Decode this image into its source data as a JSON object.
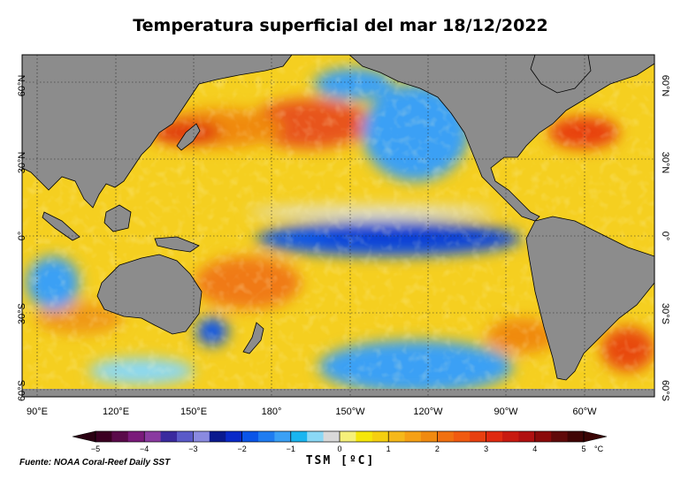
{
  "title": "Temperatura superficial del mar 18/12/2022",
  "source": "Fuente: NOAA Coral-Reef Daily SST",
  "lat_labels": [
    "60°N",
    "30°N",
    "0°",
    "30°S",
    "60°S"
  ],
  "lon_labels": [
    "90°E",
    "120°E",
    "150°E",
    "180°",
    "150°W",
    "120°W",
    "90°W",
    "60°W"
  ],
  "colorbar": {
    "label": "TSM [ºC]",
    "unit": "°C",
    "ticks": [
      "−5",
      "−4",
      "−3",
      "−2",
      "−1",
      "0",
      "1",
      "2",
      "3",
      "4",
      "5"
    ],
    "colors": [
      "#3b0022",
      "#5a0a4a",
      "#7a1a7a",
      "#8a3aa0",
      "#3a2a9e",
      "#5a5ac8",
      "#8a8ae0",
      "#0a1a8e",
      "#0a2ac8",
      "#0a55e8",
      "#1f7cf0",
      "#3aa0f5",
      "#19b5f0",
      "#8ad8f5",
      "#d9d9d9",
      "#f5f07a",
      "#f5e60a",
      "#f5cf10",
      "#f5b81a",
      "#f5a015",
      "#f08a10",
      "#f07010",
      "#f05a10",
      "#e84010",
      "#e02a10",
      "#c81a10",
      "#b01010",
      "#8a0a0a",
      "#600a0a",
      "#400505"
    ]
  },
  "map_colors": {
    "land": "#8c8c8c",
    "ocean_base": "#f5cf20"
  }
}
